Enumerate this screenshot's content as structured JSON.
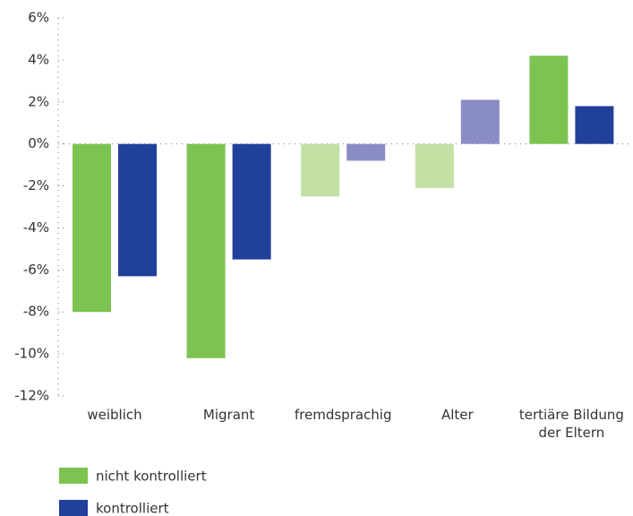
{
  "chart_data": {
    "type": "bar",
    "categories": [
      "weiblich",
      "Migrant",
      "fremdsprachig",
      "Alter",
      "tertiäre Bildung der Eltern"
    ],
    "series": [
      {
        "name": "nicht kontrolliert",
        "color": "#7dc352",
        "colors": [
          "#7dc352",
          "#7dc352",
          "#c3e0a5",
          "#c3e0a5",
          "#7dc352"
        ],
        "values": [
          -8.0,
          -10.2,
          -2.5,
          -2.1,
          4.2
        ]
      },
      {
        "name": "kontrolliert",
        "color": "#21409a",
        "colors": [
          "#21409a",
          "#21409a",
          "#8a8cc6",
          "#8a8cc6",
          "#21409a"
        ],
        "values": [
          -6.3,
          -5.5,
          -0.8,
          2.1,
          1.8
        ]
      }
    ],
    "ylim": [
      -12,
      6
    ],
    "yticks": [
      {
        "value": -12,
        "label": "-12%"
      },
      {
        "value": -10,
        "label": "-10%"
      },
      {
        "value": -8,
        "label": "-8%"
      },
      {
        "value": -6,
        "label": "-6%"
      },
      {
        "value": -4,
        "label": "-4%"
      },
      {
        "value": -2,
        "label": "-2%"
      },
      {
        "value": 0,
        "label": "0%"
      },
      {
        "value": 2,
        "label": "2%"
      },
      {
        "value": 4,
        "label": "4%"
      },
      {
        "value": 6,
        "label": "6%"
      }
    ],
    "legend": "bottom-left"
  }
}
